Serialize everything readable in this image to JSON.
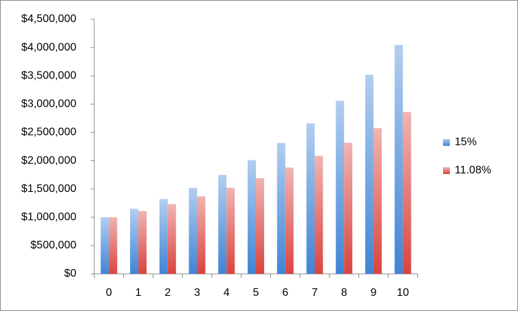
{
  "chart_data": {
    "type": "bar",
    "categories": [
      "0",
      "1",
      "2",
      "3",
      "4",
      "5",
      "6",
      "7",
      "8",
      "9",
      "10"
    ],
    "series": [
      {
        "name": "15%",
        "color": "#3f84d6",
        "values": [
          1000000,
          1150000,
          1322500,
          1520875,
          1749006,
          2011357,
          2313061,
          2660020,
          3059023,
          3517876,
          4045558
        ]
      },
      {
        "name": "11.08%",
        "color": "#d9443f",
        "values": [
          1000000,
          1110800,
          1233877,
          1370590,
          1522452,
          1691140,
          1878518,
          2086658,
          2317860,
          2574679,
          2859953
        ]
      }
    ],
    "ylim": [
      0,
      4500000
    ],
    "yticks": [
      {
        "value": 0,
        "label": "$0"
      },
      {
        "value": 500000,
        "label": "$500,000"
      },
      {
        "value": 1000000,
        "label": "$1,000,000"
      },
      {
        "value": 1500000,
        "label": "$1,500,000"
      },
      {
        "value": 2000000,
        "label": "$2,000,000"
      },
      {
        "value": 2500000,
        "label": "$2,500,000"
      },
      {
        "value": 3000000,
        "label": "$3,000,000"
      },
      {
        "value": 3500000,
        "label": "$3,500,000"
      },
      {
        "value": 4000000,
        "label": "$4,000,000"
      },
      {
        "value": 4500000,
        "label": "$4,500,000"
      }
    ],
    "grid": false,
    "legend": "right"
  }
}
